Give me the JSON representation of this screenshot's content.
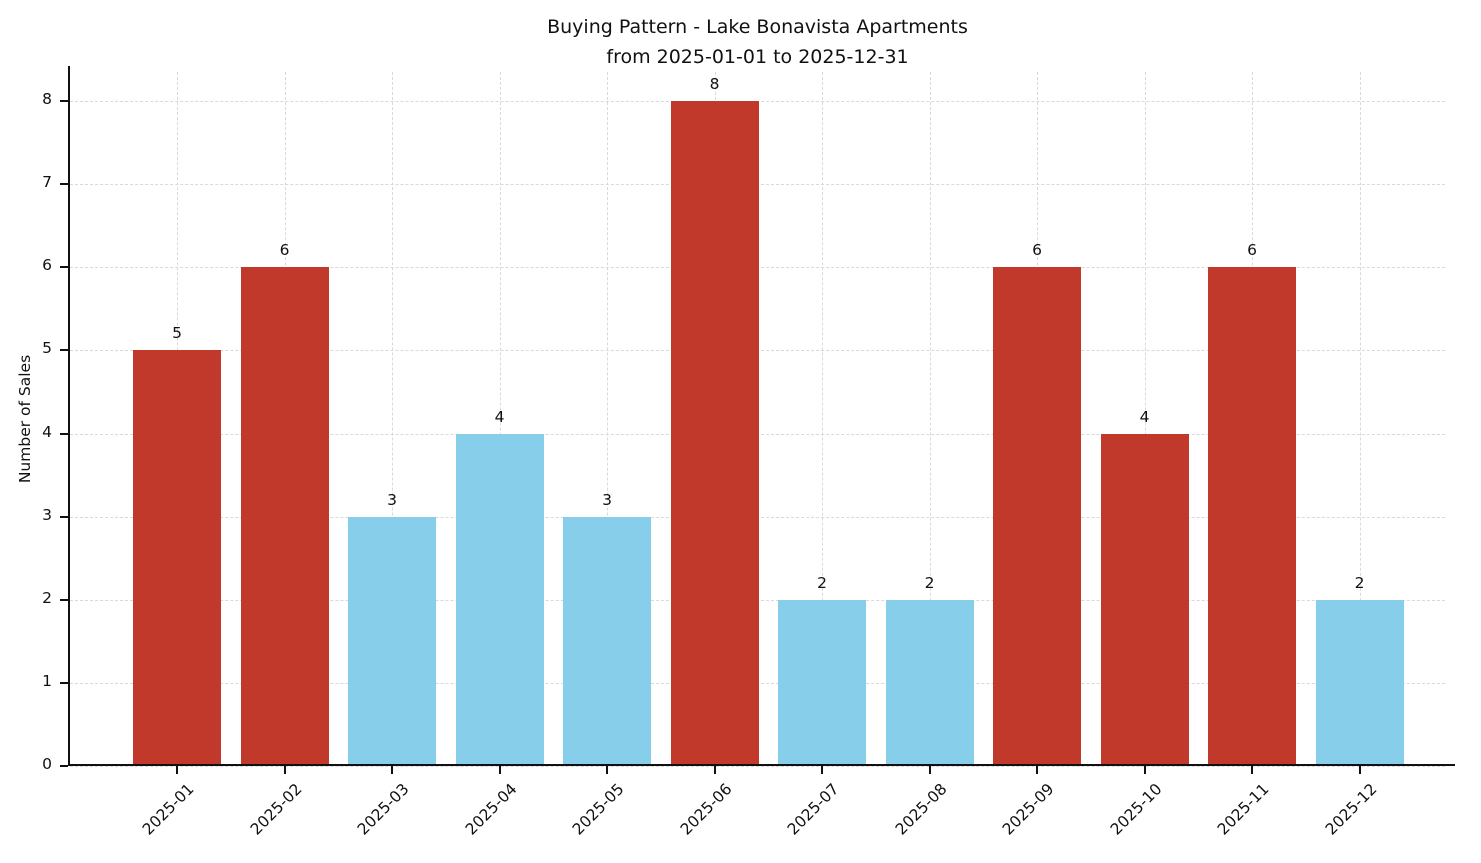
{
  "chart_data": {
    "type": "bar",
    "title": "Buying Pattern - Lake Bonavista Apartments",
    "subtitle": "from 2025-01-01 to 2025-12-31",
    "xlabel": "",
    "ylabel": "Number of Sales",
    "categories": [
      "2025-01",
      "2025-02",
      "2025-03",
      "2025-04",
      "2025-05",
      "2025-06",
      "2025-07",
      "2025-08",
      "2025-09",
      "2025-10",
      "2025-11",
      "2025-12"
    ],
    "values": [
      5,
      6,
      3,
      4,
      3,
      8,
      2,
      2,
      6,
      4,
      6,
      2
    ],
    "bar_colors": [
      "#c0392b",
      "#c0392b",
      "#87ceeb",
      "#87ceeb",
      "#87ceeb",
      "#c0392b",
      "#87ceeb",
      "#87ceeb",
      "#c0392b",
      "#c0392b",
      "#c0392b",
      "#87ceeb"
    ],
    "value_labels": [
      "5",
      "6",
      "3",
      "4",
      "3",
      "8",
      "2",
      "2",
      "6",
      "4",
      "6",
      "2"
    ],
    "ylim": [
      0,
      8.35
    ],
    "yticks": [
      0,
      1,
      2,
      3,
      4,
      5,
      6,
      7,
      8
    ],
    "grid": true,
    "legend_position": "none",
    "accent_red": "#c0392b",
    "accent_blue": "#87ceeb"
  }
}
